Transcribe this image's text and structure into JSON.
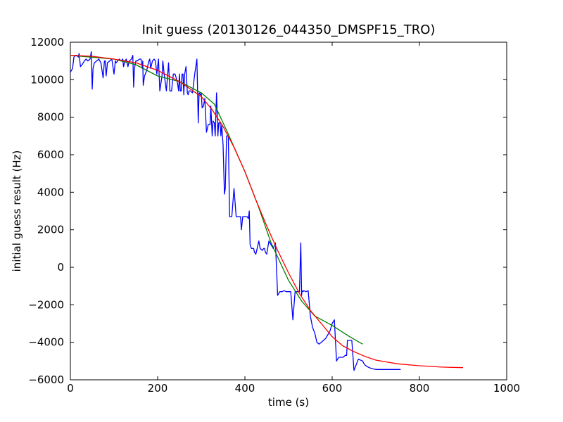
{
  "chart_data": {
    "type": "line",
    "title": "Init guess (20130126_044350_DMSPF15_TRO)",
    "xlabel": "time (s)",
    "ylabel": "initial guess result (Hz)",
    "xlim": [
      0,
      1000
    ],
    "ylim": [
      -6000,
      12000
    ],
    "x_ticks": [
      0,
      200,
      400,
      600,
      800,
      1000
    ],
    "y_ticks": [
      -6000,
      -4000,
      -2000,
      0,
      2000,
      4000,
      6000,
      8000,
      10000,
      12000
    ],
    "grid": false,
    "legend": "none",
    "series": [
      {
        "color": "#0000ff",
        "x": [
          0,
          5,
          8,
          12,
          15,
          18,
          20,
          23,
          27,
          32,
          36,
          40,
          45,
          48,
          50,
          52,
          55,
          60,
          65,
          70,
          75,
          78,
          80,
          82,
          85,
          90,
          95,
          100,
          103,
          105,
          108,
          112,
          116,
          120,
          122,
          125,
          128,
          132,
          135,
          140,
          143,
          145,
          147,
          150,
          153,
          158,
          162,
          165,
          166,
          167,
          170,
          175,
          180,
          182,
          184,
          188,
          192,
          195,
          198,
          202,
          205,
          210,
          212,
          215,
          220,
          223,
          225,
          228,
          232,
          236,
          240,
          245,
          248,
          250,
          252,
          254,
          256,
          258,
          260,
          262,
          265,
          268,
          270,
          272,
          275,
          280,
          285,
          290,
          293,
          295,
          298,
          300,
          302,
          305,
          308,
          312,
          316,
          320,
          322,
          325,
          327,
          330,
          332,
          335,
          338,
          340,
          343,
          345,
          347,
          350,
          353,
          355,
          358,
          362,
          365,
          370,
          375,
          380,
          385,
          390,
          392,
          395,
          400,
          405,
          408,
          410,
          412,
          415,
          420,
          422,
          425,
          428,
          432,
          435,
          440,
          443,
          445,
          447,
          450,
          455,
          460,
          465,
          470,
          475,
          480,
          485,
          490,
          495,
          500,
          505,
          510,
          515,
          520,
          525,
          528,
          530,
          531,
          533,
          535,
          540,
          545,
          550,
          555,
          560,
          565,
          570,
          575,
          580,
          585,
          590,
          595,
          600,
          605,
          610,
          615,
          620,
          625,
          630,
          633,
          635,
          637,
          640,
          645,
          650,
          660,
          670,
          672,
          675,
          680,
          690,
          700,
          702,
          705,
          710,
          715,
          720,
          725,
          730,
          740,
          750,
          757
        ],
        "y": [
          10400,
          10600,
          11200,
          11300,
          11300,
          11200,
          11400,
          10700,
          10800,
          11000,
          11100,
          11000,
          11100,
          11500,
          9500,
          10600,
          10900,
          11000,
          11100,
          10900,
          10100,
          11000,
          11000,
          10200,
          10900,
          11000,
          11100,
          10300,
          11000,
          10900,
          11000,
          11100,
          11000,
          11100,
          10700,
          11000,
          11100,
          10700,
          11000,
          11100,
          11300,
          9600,
          10600,
          11000,
          11000,
          11100,
          11100,
          10600,
          11000,
          9700,
          10200,
          10500,
          11000,
          11100,
          10600,
          11000,
          11100,
          11000,
          10300,
          11100,
          9400,
          10200,
          11000,
          10300,
          9400,
          10300,
          10900,
          9400,
          9400,
          10300,
          10300,
          9900,
          9400,
          10300,
          9400,
          9400,
          10300,
          10300,
          9200,
          10300,
          10700,
          9300,
          9200,
          9400,
          9400,
          9300,
          10300,
          11100,
          7700,
          9300,
          9200,
          9300,
          8500,
          8600,
          9000,
          7200,
          7600,
          7600,
          8600,
          7000,
          7800,
          7700,
          7000,
          9300,
          7000,
          7700,
          7700,
          7000,
          7600,
          6500,
          3900,
          4200,
          7000,
          7000,
          2700,
          2700,
          4200,
          2700,
          2700,
          2700,
          2000,
          2700,
          2700,
          2700,
          2600,
          3000,
          1200,
          1000,
          1000,
          800,
          700,
          1000,
          1400,
          1000,
          900,
          1000,
          1000,
          800,
          700,
          1400,
          1200,
          1000,
          1300,
          -1500,
          -1300,
          -1300,
          -1250,
          -1300,
          -1300,
          -1300,
          -2800,
          -1300,
          -1300,
          -1300,
          1300,
          -1500,
          -1250,
          -1300,
          -1250,
          -1300,
          -1250,
          -2600,
          -3200,
          -3500,
          -4000,
          -4100,
          -4000,
          -3900,
          -3800,
          -3600,
          -3400,
          -3000,
          -2800,
          -5000,
          -4800,
          -4800,
          -4800,
          -4700,
          -4700,
          -3900,
          -3900,
          -3900,
          -3900,
          -5500,
          -4900,
          -5000,
          -5100,
          -5200,
          -5300,
          -5400,
          -5450,
          -5450,
          -5450,
          -5450,
          -5450,
          -5450,
          -5450,
          -5450,
          -5450,
          -5450,
          -5450
        ]
      },
      {
        "color": "#008000",
        "x": [
          0,
          50,
          100,
          150,
          200,
          250,
          300,
          330,
          360,
          400,
          430,
          460,
          500,
          530,
          560,
          600,
          640,
          670
        ],
        "y": [
          11300,
          11200,
          11100,
          10800,
          10200,
          9900,
          9300,
          8700,
          7200,
          5100,
          3300,
          1300,
          -700,
          -1800,
          -2600,
          -3100,
          -3700,
          -4100
        ]
      },
      {
        "color": "#ff0000",
        "x": [
          0,
          50,
          100,
          150,
          200,
          250,
          300,
          325,
          350,
          375,
          400,
          425,
          450,
          475,
          500,
          525,
          550,
          575,
          600,
          625,
          650,
          675,
          700,
          750,
          800,
          850,
          900
        ],
        "y": [
          11300,
          11250,
          11100,
          10900,
          10500,
          9900,
          9100,
          8400,
          7500,
          6400,
          5100,
          3600,
          2200,
          900,
          -300,
          -1400,
          -2300,
          -3000,
          -3700,
          -4200,
          -4500,
          -4750,
          -4950,
          -5150,
          -5250,
          -5320,
          -5350
        ]
      }
    ]
  }
}
